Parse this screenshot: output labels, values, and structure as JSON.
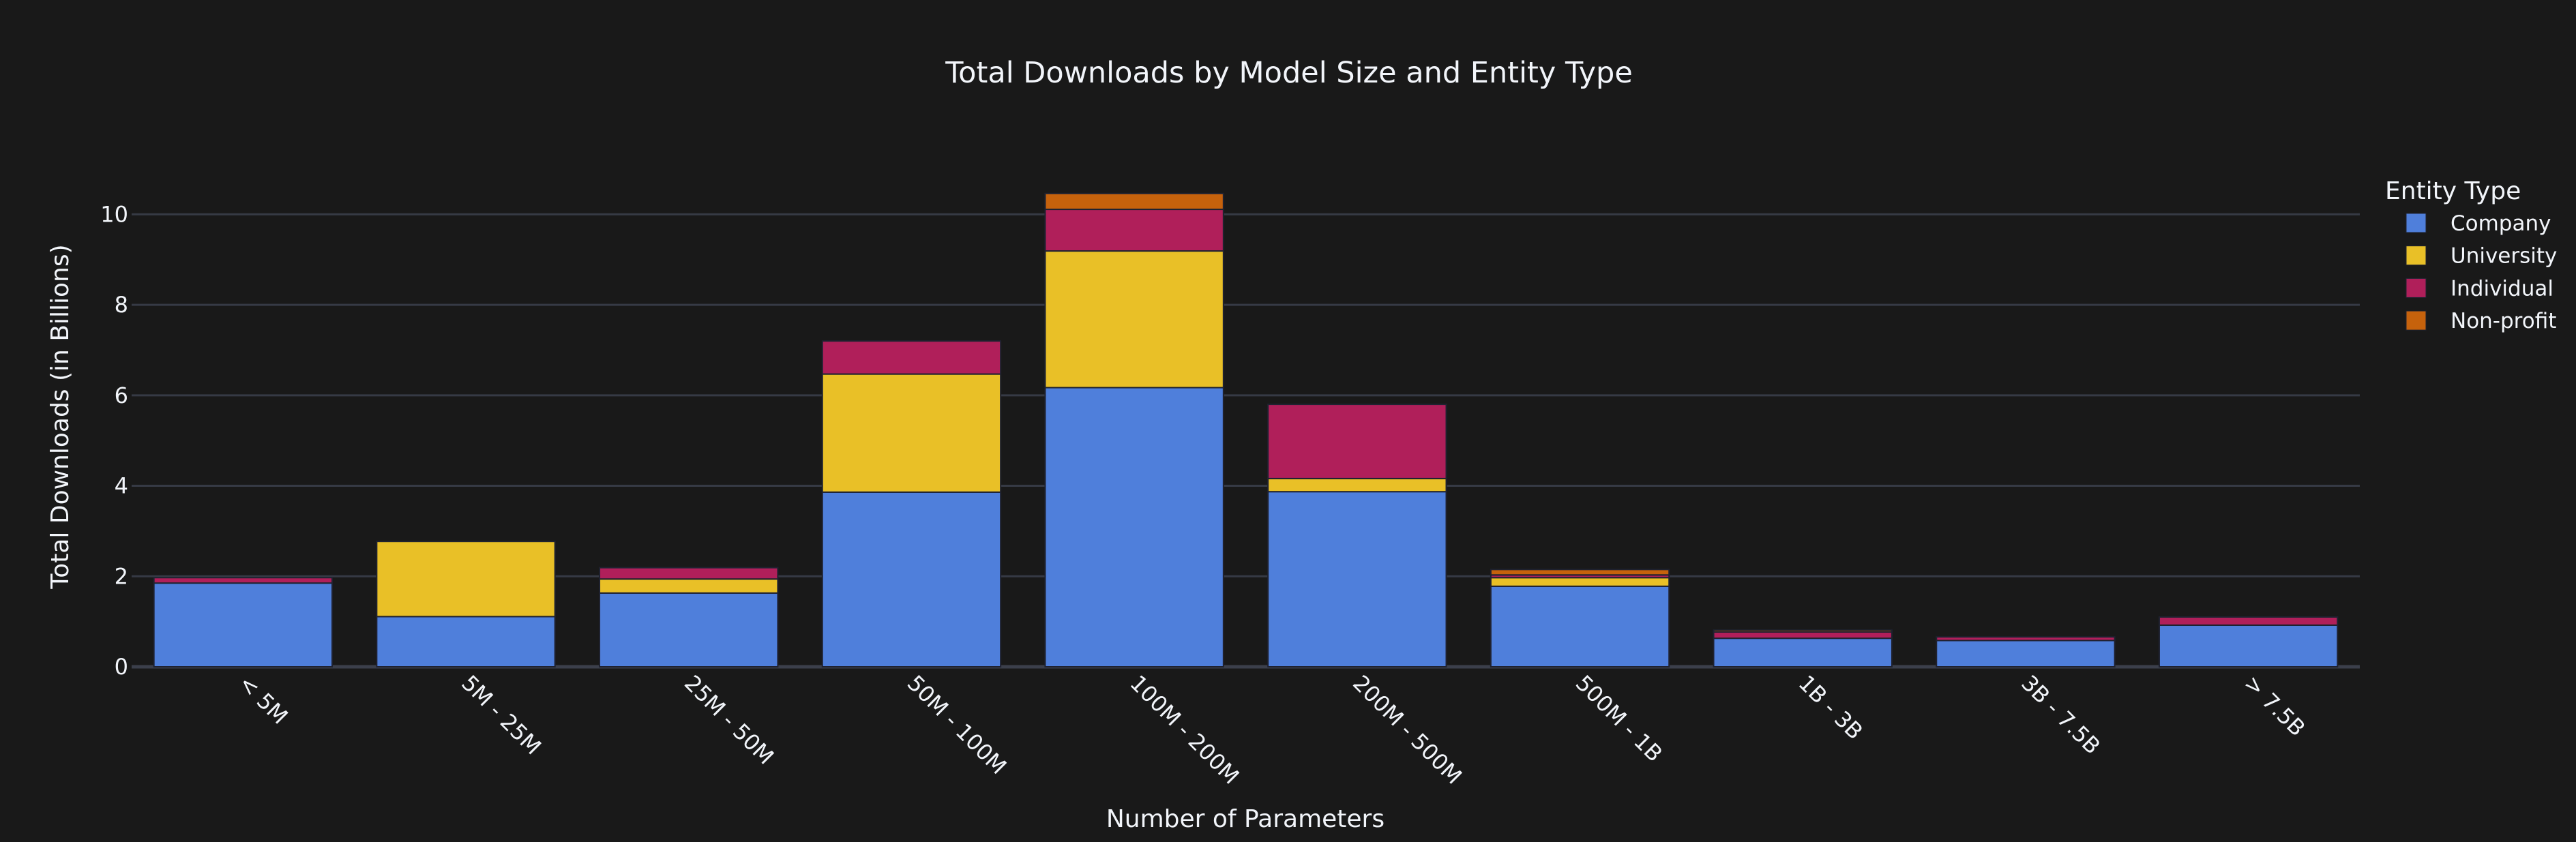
{
  "chart_data": {
    "type": "bar",
    "barmode": "stack",
    "title": "Total Downloads by Model Size and Entity Type",
    "xlabel": "Number of Parameters",
    "ylabel": "Total Downloads (in Billions)",
    "ylim": [
      0,
      11
    ],
    "yticks": [
      0,
      2,
      4,
      6,
      8,
      10
    ],
    "grid": true,
    "legend_title": "Entity Type",
    "legend_position": "right",
    "categories": [
      "< 5M",
      "5M - 25M",
      "25M - 50M",
      "50M - 100M",
      "100M - 200M",
      "200M - 500M",
      "500M - 1B",
      "1B - 3B",
      "3B - 7.5B",
      "> 7.5B"
    ],
    "series": [
      {
        "name": "Company",
        "color": "#4f7fdb",
        "values": [
          1.85,
          1.11,
          1.63,
          3.86,
          6.17,
          3.87,
          1.78,
          0.63,
          0.58,
          0.92
        ]
      },
      {
        "name": "University",
        "color": "#e9c027",
        "values": [
          0.0,
          1.66,
          0.31,
          2.61,
          3.02,
          0.29,
          0.19,
          0.0,
          0.0,
          0.0
        ]
      },
      {
        "name": "Individual",
        "color": "#b01f5a",
        "values": [
          0.12,
          0.0,
          0.25,
          0.73,
          0.92,
          1.64,
          0.06,
          0.14,
          0.08,
          0.18
        ]
      },
      {
        "name": "Non-profit",
        "color": "#c6620c",
        "values": [
          0.0,
          0.0,
          0.0,
          0.0,
          0.35,
          0.0,
          0.12,
          0.04,
          0.0,
          0.0
        ]
      }
    ]
  },
  "colors": {
    "background": "#191919",
    "grid": "#363a45",
    "text": "#f2f5fa"
  }
}
